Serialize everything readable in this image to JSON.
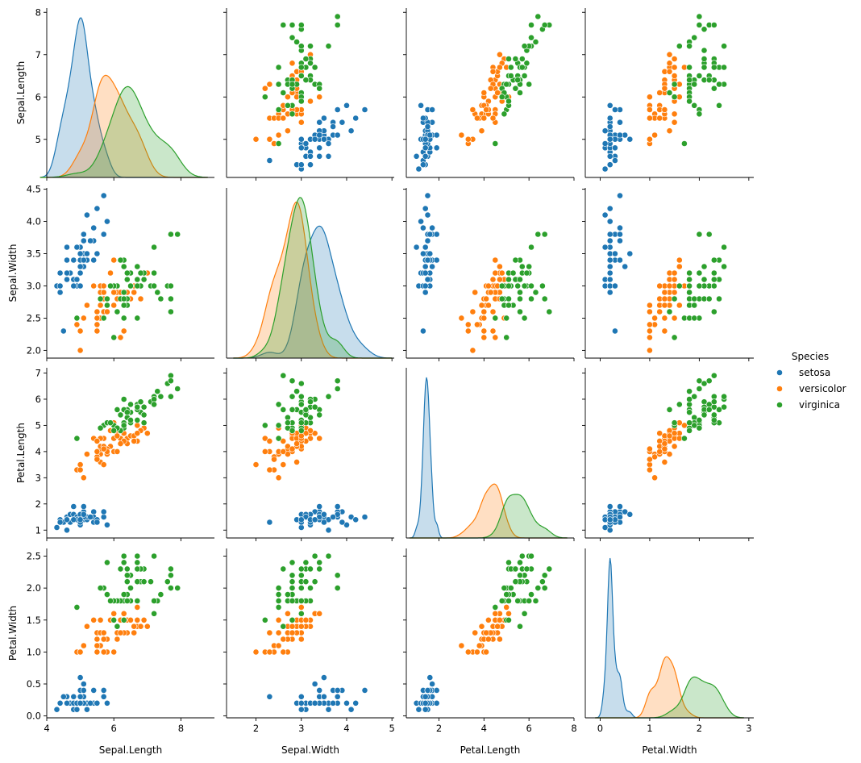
{
  "chart_data": {
    "type": "scatter",
    "variables": [
      "Sepal.Length",
      "Sepal.Width",
      "Petal.Length",
      "Petal.Width"
    ],
    "legend": {
      "title": "Species",
      "placement": "right",
      "entries": [
        {
          "name": "setosa",
          "color": "#1f77b4"
        },
        {
          "name": "versicolor",
          "color": "#ff7f0e"
        },
        {
          "name": "virginica",
          "color": "#2ca02c"
        }
      ]
    },
    "axes": {
      "Sepal.Length": {
        "range": [
          4.0,
          9.0
        ],
        "ticks": [
          4,
          6,
          8
        ],
        "kde_range": [
          3.8,
          8.8
        ],
        "ticks_y": [
          5,
          6,
          7,
          8
        ],
        "range_y": [
          4.1,
          8.1
        ]
      },
      "Sepal.Width": {
        "range": [
          1.35,
          5.05
        ],
        "ticks": [
          2,
          3,
          4,
          5
        ],
        "kde_range": [
          1.5,
          5.0
        ],
        "ticks_y": [
          2.0,
          2.5,
          3.0,
          3.5,
          4.0,
          4.5
        ],
        "range_y": [
          1.88,
          4.52
        ]
      },
      "Petal.Length": {
        "range": [
          0.55,
          8.0
        ],
        "ticks": [
          2,
          4,
          6,
          8
        ],
        "kde_range": [
          0.7,
          7.7
        ],
        "ticks_y": [
          1,
          2,
          3,
          4,
          5,
          6,
          7
        ],
        "range_y": [
          0.7,
          7.2
        ]
      },
      "Petal.Width": {
        "range": [
          -0.3,
          3.1
        ],
        "ticks": [
          0,
          1,
          2,
          3
        ],
        "kde_range": [
          -0.1,
          2.9
        ],
        "ticks_y": [
          0.0,
          0.5,
          1.0,
          1.5,
          2.0,
          2.5
        ],
        "range_y": [
          -0.03,
          2.62
        ]
      }
    },
    "grid": false,
    "diagonal": "kde",
    "series": [
      {
        "name": "setosa",
        "points": [
          [
            5.1,
            3.5,
            1.4,
            0.2
          ],
          [
            4.9,
            3.0,
            1.4,
            0.2
          ],
          [
            4.7,
            3.2,
            1.3,
            0.2
          ],
          [
            4.6,
            3.1,
            1.5,
            0.2
          ],
          [
            5.0,
            3.6,
            1.4,
            0.2
          ],
          [
            5.4,
            3.9,
            1.7,
            0.4
          ],
          [
            4.6,
            3.4,
            1.4,
            0.3
          ],
          [
            5.0,
            3.4,
            1.5,
            0.2
          ],
          [
            4.4,
            2.9,
            1.4,
            0.2
          ],
          [
            4.9,
            3.1,
            1.5,
            0.1
          ],
          [
            5.4,
            3.7,
            1.5,
            0.2
          ],
          [
            4.8,
            3.4,
            1.6,
            0.2
          ],
          [
            4.8,
            3.0,
            1.4,
            0.1
          ],
          [
            4.3,
            3.0,
            1.1,
            0.1
          ],
          [
            5.8,
            4.0,
            1.2,
            0.2
          ],
          [
            5.7,
            4.4,
            1.5,
            0.4
          ],
          [
            5.4,
            3.9,
            1.3,
            0.4
          ],
          [
            5.1,
            3.5,
            1.4,
            0.3
          ],
          [
            5.7,
            3.8,
            1.7,
            0.3
          ],
          [
            5.1,
            3.8,
            1.5,
            0.3
          ],
          [
            5.4,
            3.4,
            1.7,
            0.2
          ],
          [
            5.1,
            3.7,
            1.5,
            0.4
          ],
          [
            4.6,
            3.6,
            1.0,
            0.2
          ],
          [
            5.1,
            3.3,
            1.7,
            0.5
          ],
          [
            4.8,
            3.4,
            1.9,
            0.2
          ],
          [
            5.0,
            3.0,
            1.6,
            0.2
          ],
          [
            5.0,
            3.4,
            1.6,
            0.4
          ],
          [
            5.2,
            3.5,
            1.5,
            0.2
          ],
          [
            5.2,
            3.4,
            1.4,
            0.2
          ],
          [
            4.7,
            3.2,
            1.6,
            0.2
          ],
          [
            4.8,
            3.1,
            1.6,
            0.2
          ],
          [
            5.4,
            3.4,
            1.5,
            0.4
          ],
          [
            5.2,
            4.1,
            1.5,
            0.1
          ],
          [
            5.5,
            4.2,
            1.4,
            0.2
          ],
          [
            4.9,
            3.1,
            1.5,
            0.2
          ],
          [
            5.0,
            3.2,
            1.2,
            0.2
          ],
          [
            5.5,
            3.5,
            1.3,
            0.2
          ],
          [
            4.9,
            3.6,
            1.4,
            0.1
          ],
          [
            4.4,
            3.0,
            1.3,
            0.2
          ],
          [
            5.1,
            3.4,
            1.5,
            0.2
          ],
          [
            5.0,
            3.5,
            1.3,
            0.3
          ],
          [
            4.5,
            2.3,
            1.3,
            0.3
          ],
          [
            4.4,
            3.2,
            1.3,
            0.2
          ],
          [
            5.0,
            3.5,
            1.6,
            0.6
          ],
          [
            5.1,
            3.8,
            1.9,
            0.4
          ],
          [
            4.8,
            3.0,
            1.4,
            0.3
          ],
          [
            5.1,
            3.8,
            1.6,
            0.2
          ],
          [
            4.6,
            3.2,
            1.4,
            0.2
          ],
          [
            5.3,
            3.7,
            1.5,
            0.2
          ],
          [
            5.0,
            3.3,
            1.4,
            0.2
          ]
        ]
      },
      {
        "name": "versicolor",
        "points": [
          [
            7.0,
            3.2,
            4.7,
            1.4
          ],
          [
            6.4,
            3.2,
            4.5,
            1.5
          ],
          [
            6.9,
            3.1,
            4.9,
            1.5
          ],
          [
            5.5,
            2.3,
            4.0,
            1.3
          ],
          [
            6.5,
            2.8,
            4.6,
            1.5
          ],
          [
            5.7,
            2.8,
            4.5,
            1.3
          ],
          [
            6.3,
            3.3,
            4.7,
            1.6
          ],
          [
            4.9,
            2.4,
            3.3,
            1.0
          ],
          [
            6.6,
            2.9,
            4.6,
            1.3
          ],
          [
            5.2,
            2.7,
            3.9,
            1.4
          ],
          [
            5.0,
            2.0,
            3.5,
            1.0
          ],
          [
            5.9,
            3.0,
            4.2,
            1.5
          ],
          [
            6.0,
            2.2,
            4.0,
            1.0
          ],
          [
            6.1,
            2.9,
            4.7,
            1.4
          ],
          [
            5.6,
            2.9,
            3.6,
            1.3
          ],
          [
            6.7,
            3.1,
            4.4,
            1.4
          ],
          [
            5.6,
            3.0,
            4.5,
            1.5
          ],
          [
            5.8,
            2.7,
            4.1,
            1.0
          ],
          [
            6.2,
            2.2,
            4.5,
            1.5
          ],
          [
            5.6,
            2.5,
            3.9,
            1.1
          ],
          [
            5.9,
            3.2,
            4.8,
            1.8
          ],
          [
            6.1,
            2.8,
            4.0,
            1.3
          ],
          [
            6.3,
            2.5,
            4.9,
            1.5
          ],
          [
            6.1,
            2.8,
            4.7,
            1.2
          ],
          [
            6.4,
            2.9,
            4.3,
            1.3
          ],
          [
            6.6,
            3.0,
            4.4,
            1.4
          ],
          [
            6.8,
            2.8,
            4.8,
            1.4
          ],
          [
            6.7,
            3.0,
            5.0,
            1.7
          ],
          [
            6.0,
            2.9,
            4.5,
            1.5
          ],
          [
            5.7,
            2.6,
            3.5,
            1.0
          ],
          [
            5.5,
            2.4,
            3.8,
            1.1
          ],
          [
            5.5,
            2.4,
            3.7,
            1.0
          ],
          [
            5.8,
            2.7,
            3.9,
            1.2
          ],
          [
            6.0,
            2.7,
            5.1,
            1.6
          ],
          [
            5.4,
            3.0,
            4.5,
            1.5
          ],
          [
            6.0,
            3.4,
            4.5,
            1.6
          ],
          [
            6.7,
            3.1,
            4.7,
            1.5
          ],
          [
            6.3,
            2.3,
            4.4,
            1.3
          ],
          [
            5.6,
            3.0,
            4.1,
            1.3
          ],
          [
            5.5,
            2.5,
            4.0,
            1.3
          ],
          [
            5.5,
            2.6,
            4.4,
            1.2
          ],
          [
            6.1,
            3.0,
            4.6,
            1.4
          ],
          [
            5.8,
            2.6,
            4.0,
            1.2
          ],
          [
            5.0,
            2.3,
            3.3,
            1.0
          ],
          [
            5.6,
            2.7,
            4.2,
            1.3
          ],
          [
            5.7,
            3.0,
            4.2,
            1.2
          ],
          [
            5.7,
            2.9,
            4.2,
            1.3
          ],
          [
            6.2,
            2.9,
            4.3,
            1.3
          ],
          [
            5.1,
            2.5,
            3.0,
            1.1
          ],
          [
            5.7,
            2.8,
            4.1,
            1.3
          ]
        ]
      },
      {
        "name": "virginica",
        "points": [
          [
            6.3,
            3.3,
            6.0,
            2.5
          ],
          [
            5.8,
            2.7,
            5.1,
            1.9
          ],
          [
            7.1,
            3.0,
            5.9,
            2.1
          ],
          [
            6.3,
            2.9,
            5.6,
            1.8
          ],
          [
            6.5,
            3.0,
            5.8,
            2.2
          ],
          [
            7.6,
            3.0,
            6.6,
            2.1
          ],
          [
            4.9,
            2.5,
            4.5,
            1.7
          ],
          [
            7.3,
            2.9,
            6.3,
            1.8
          ],
          [
            6.7,
            2.5,
            5.8,
            1.8
          ],
          [
            7.2,
            3.6,
            6.1,
            2.5
          ],
          [
            6.5,
            3.2,
            5.1,
            2.0
          ],
          [
            6.4,
            2.7,
            5.3,
            1.9
          ],
          [
            6.8,
            3.0,
            5.5,
            2.1
          ],
          [
            5.7,
            2.5,
            5.0,
            2.0
          ],
          [
            5.8,
            2.8,
            5.1,
            2.4
          ],
          [
            6.4,
            3.2,
            5.3,
            2.3
          ],
          [
            6.5,
            3.0,
            5.5,
            1.8
          ],
          [
            7.7,
            3.8,
            6.7,
            2.2
          ],
          [
            7.7,
            2.6,
            6.9,
            2.3
          ],
          [
            6.0,
            2.2,
            5.0,
            1.5
          ],
          [
            6.9,
            3.2,
            5.7,
            2.3
          ],
          [
            5.6,
            2.8,
            4.9,
            2.0
          ],
          [
            7.7,
            2.8,
            6.7,
            2.0
          ],
          [
            6.3,
            2.7,
            4.9,
            1.8
          ],
          [
            6.7,
            3.3,
            5.7,
            2.1
          ],
          [
            7.2,
            3.2,
            6.0,
            1.8
          ],
          [
            6.2,
            2.8,
            4.8,
            1.8
          ],
          [
            6.1,
            3.0,
            4.9,
            1.8
          ],
          [
            6.4,
            2.8,
            5.6,
            2.1
          ],
          [
            7.2,
            3.0,
            5.8,
            1.6
          ],
          [
            7.4,
            2.8,
            6.1,
            1.9
          ],
          [
            7.9,
            3.8,
            6.4,
            2.0
          ],
          [
            6.4,
            2.8,
            5.6,
            2.2
          ],
          [
            6.3,
            2.8,
            5.1,
            1.5
          ],
          [
            6.1,
            2.6,
            5.6,
            1.4
          ],
          [
            7.7,
            3.0,
            6.1,
            2.3
          ],
          [
            6.3,
            3.4,
            5.6,
            2.4
          ],
          [
            6.4,
            3.1,
            5.5,
            1.8
          ],
          [
            6.0,
            3.0,
            4.8,
            1.8
          ],
          [
            6.9,
            3.1,
            5.4,
            2.1
          ],
          [
            6.7,
            3.1,
            5.6,
            2.4
          ],
          [
            6.9,
            3.1,
            5.1,
            2.3
          ],
          [
            5.8,
            2.7,
            5.1,
            1.9
          ],
          [
            6.8,
            3.2,
            5.9,
            2.3
          ],
          [
            6.7,
            3.3,
            5.7,
            2.5
          ],
          [
            6.7,
            3.0,
            5.2,
            2.3
          ],
          [
            6.3,
            2.5,
            5.0,
            1.9
          ],
          [
            6.5,
            3.0,
            5.2,
            2.0
          ],
          [
            6.2,
            3.4,
            5.4,
            2.3
          ],
          [
            5.9,
            3.0,
            5.1,
            1.8
          ]
        ]
      }
    ]
  }
}
